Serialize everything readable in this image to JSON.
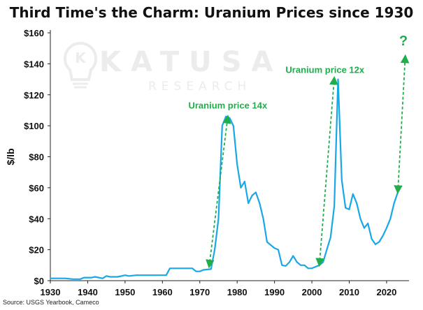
{
  "title": "Third Time's the Charm: Uranium Prices since 1930",
  "source": "Source: USGS Yearbook, Cameco",
  "watermark": {
    "line1": "KATUSA",
    "line2": "RESEARCH",
    "logo_letter": "K",
    "icon": "lightbulb-logo"
  },
  "colors": {
    "line": "#1aa7e8",
    "annotation": "#1fae4b",
    "axis": "#222222",
    "watermark": "#ececec"
  },
  "chart_data": {
    "type": "line",
    "ylabel": "$/lb",
    "xlabel": "",
    "ylim": [
      0,
      160
    ],
    "xlim": [
      1930,
      2026
    ],
    "yticks": [
      0,
      20,
      40,
      60,
      80,
      100,
      120,
      140,
      160
    ],
    "ytick_labels": [
      "$0",
      "$20",
      "$40",
      "$60",
      "$80",
      "$100",
      "$120",
      "$140",
      "$160"
    ],
    "xticks": [
      1930,
      1940,
      1950,
      1960,
      1970,
      1980,
      1990,
      2000,
      2010,
      2020
    ],
    "xtick_labels": [
      "1930",
      "1940",
      "1950",
      "1960",
      "1970",
      "1980",
      "1990",
      "2000",
      "2010",
      "2020"
    ],
    "grid": false,
    "legend": "none",
    "series": [
      {
        "x": [
          1930,
          1932,
          1934,
          1936,
          1938,
          1939,
          1941,
          1942,
          1944,
          1945,
          1946,
          1948,
          1950,
          1951,
          1953,
          1955,
          1957,
          1959,
          1961,
          1962,
          1964,
          1966,
          1968,
          1969,
          1970,
          1971,
          1973,
          1974,
          1975,
          1976,
          1977,
          1978,
          1979,
          1980,
          1981,
          1982,
          1983,
          1984,
          1985,
          1986,
          1987,
          1988,
          1989,
          1990,
          1991,
          1992,
          1993,
          1994,
          1995,
          1996,
          1997,
          1998,
          1999,
          2000,
          2001,
          2002,
          2003,
          2004,
          2005,
          2006,
          2007,
          2008,
          2009,
          2010,
          2011,
          2012,
          2013,
          2014,
          2015,
          2016,
          2017,
          2018,
          2019,
          2020,
          2021,
          2022,
          2023
        ],
        "y": [
          1.5,
          1.5,
          1.5,
          1,
          1,
          2,
          2,
          2.5,
          1.5,
          3,
          2.5,
          2.5,
          3.5,
          3,
          3.5,
          3.5,
          3.5,
          3.5,
          3.5,
          8,
          8,
          8,
          8,
          6,
          6,
          7,
          7.5,
          20,
          40,
          100,
          106,
          105,
          100,
          75,
          60,
          64,
          50,
          55,
          57,
          50,
          40,
          25,
          23,
          21,
          20,
          10,
          9.5,
          12,
          16,
          12,
          10,
          10,
          8,
          8,
          9,
          10,
          12,
          20,
          28,
          48,
          130,
          65,
          47,
          46,
          56,
          50,
          40,
          34,
          37,
          27,
          23.5,
          25,
          29,
          34,
          40,
          50,
          57
        ]
      }
    ],
    "annotations": [
      {
        "text": "Uranium price 14x",
        "x": 1977.5,
        "y": 111,
        "arrow_from": [
          1972.5,
          9
        ],
        "arrow_to": [
          1977.5,
          106
        ]
      },
      {
        "text": "Uranium price 12x",
        "x": 2003.5,
        "y": 134,
        "arrow_from": [
          2002,
          10
        ],
        "arrow_to": [
          2006,
          131
        ]
      },
      {
        "text": "?",
        "x": 2024.5,
        "y": 152,
        "arrow_from": [
          2023,
          57
        ],
        "arrow_to": [
          2025,
          145
        ]
      }
    ]
  }
}
